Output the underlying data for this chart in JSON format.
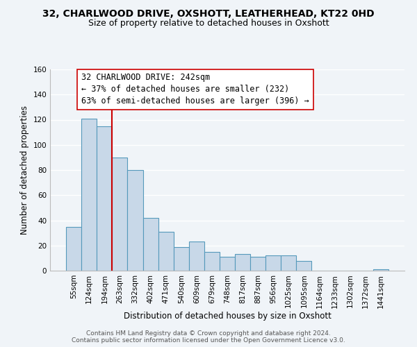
{
  "title": "32, CHARLWOOD DRIVE, OXSHOTT, LEATHERHEAD, KT22 0HD",
  "subtitle": "Size of property relative to detached houses in Oxshott",
  "xlabel": "Distribution of detached houses by size in Oxshott",
  "ylabel": "Number of detached properties",
  "bar_labels": [
    "55sqm",
    "124sqm",
    "194sqm",
    "263sqm",
    "332sqm",
    "402sqm",
    "471sqm",
    "540sqm",
    "609sqm",
    "679sqm",
    "748sqm",
    "817sqm",
    "887sqm",
    "956sqm",
    "1025sqm",
    "1095sqm",
    "1164sqm",
    "1233sqm",
    "1302sqm",
    "1372sqm",
    "1441sqm"
  ],
  "bar_values": [
    35,
    121,
    115,
    90,
    80,
    42,
    31,
    19,
    23,
    15,
    11,
    13,
    11,
    12,
    12,
    8,
    0,
    0,
    0,
    0,
    1
  ],
  "bar_color": "#c8d8e8",
  "bar_edge_color": "#5599bb",
  "vline_color": "#cc0000",
  "vline_pos": 2.5,
  "annotation_line1": "32 CHARLWOOD DRIVE: 242sqm",
  "annotation_line2": "← 37% of detached houses are smaller (232)",
  "annotation_line3": "63% of semi-detached houses are larger (396) →",
  "annotation_box_color": "#ffffff",
  "annotation_box_edge": "#cc0000",
  "ylim": [
    0,
    160
  ],
  "yticks": [
    0,
    20,
    40,
    60,
    80,
    100,
    120,
    140,
    160
  ],
  "footer1": "Contains HM Land Registry data © Crown copyright and database right 2024.",
  "footer2": "Contains public sector information licensed under the Open Government Licence v3.0.",
  "background_color": "#f0f4f8",
  "grid_color": "#ffffff",
  "title_fontsize": 10,
  "subtitle_fontsize": 9,
  "axis_label_fontsize": 8.5,
  "tick_fontsize": 7.5,
  "annotation_fontsize": 8.5,
  "footer_fontsize": 6.5
}
